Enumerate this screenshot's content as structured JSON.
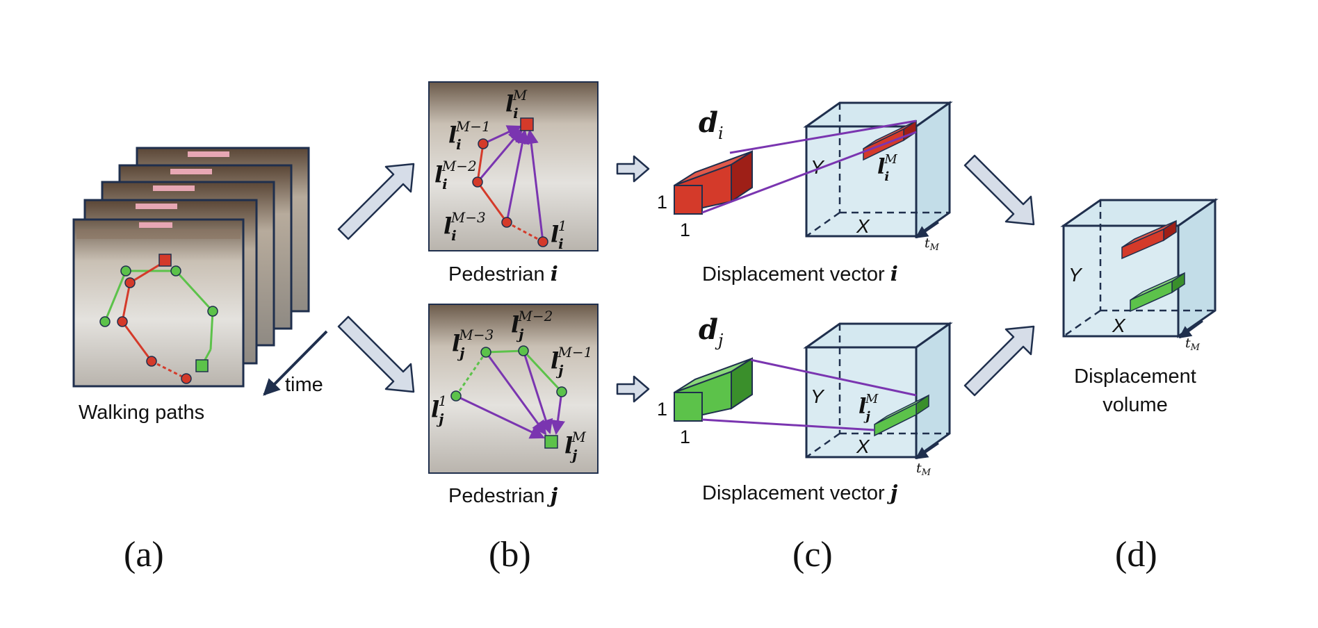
{
  "panels": {
    "a": {
      "letter": "(a)",
      "caption": "Walking paths",
      "time_label": "time"
    },
    "b": {
      "letter": "(b)",
      "caption_i_prefix": "Pedestrian ",
      "caption_i_var": "i",
      "caption_j_prefix": "Pedestrian ",
      "caption_j_var": "j",
      "labels_i": {
        "lM_base": "l",
        "lM_sub": "i",
        "lM_sup": "M",
        "lM1_sup": "M−1",
        "lM2_sup": "M−2",
        "lM3_sup": "M−3",
        "l1_sup": "1"
      },
      "labels_j": {
        "lM_base": "l",
        "lM_sub": "j",
        "lM_sup": "M",
        "lM1_sup": "M−1",
        "lM2_sup": "M−2",
        "lM3_sup": "M−3",
        "l1_sup": "1"
      }
    },
    "c": {
      "letter": "(c)",
      "caption_i_prefix": "Displacement vector ",
      "caption_i_var": "i",
      "caption_j_prefix": "Displacement vector ",
      "caption_j_var": "j",
      "d_i_base": "d",
      "d_i_sub": "i",
      "d_j_base": "d",
      "d_j_sub": "j",
      "one_label": "1",
      "axis_y": "Y",
      "axis_x": "X",
      "axis_t": "t",
      "axis_t_sub": "M",
      "l_base": "l",
      "l_sup": "M"
    },
    "d": {
      "letter": "(d)",
      "caption_line1": "Displacement",
      "caption_line2": "volume",
      "axis_y": "Y",
      "axis_x": "X",
      "axis_t": "t",
      "axis_t_sub": "M"
    }
  },
  "colors": {
    "red": "#d43a2a",
    "green": "#5cc24a",
    "purple": "#7a35b0",
    "navy": "#1f2f4d",
    "cube_fill": "#d4e8f0",
    "arrow_fill": "#d6dde8"
  }
}
